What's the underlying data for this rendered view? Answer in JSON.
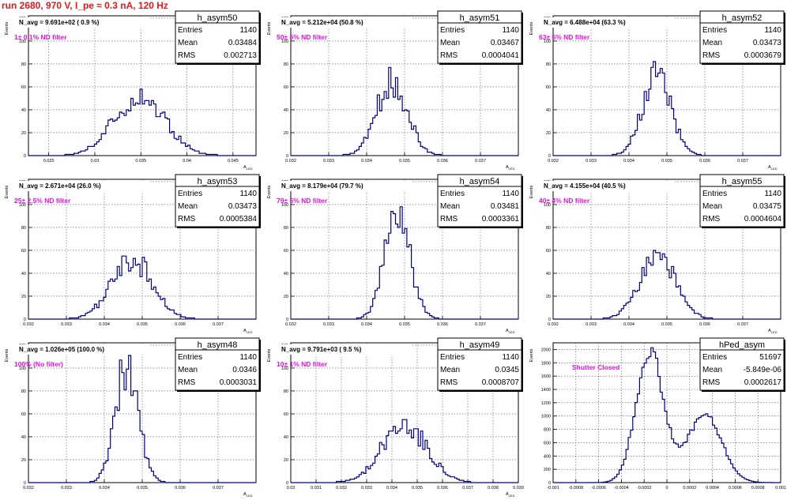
{
  "run_title": "run 2680,   970 V, I_pe ≈ 0.3 nA, 120 Hz",
  "colors": {
    "title": "#e0191c",
    "histogram": "#000080",
    "filter_label": "#e610e6"
  },
  "chart_data": [
    {
      "type": "histogram",
      "name": "h_asym50",
      "n_avg": "N_avg = 9.691e+02 ( 0.9 %)",
      "filter": "1± 0.1% ND filter",
      "stats": {
        "entries": "1140",
        "mean": "0.03484",
        "rms": "0.002713"
      },
      "ylabel": "Events",
      "xlabel": "A_LED",
      "xlim": [
        0.0228,
        0.0475
      ],
      "ylim": [
        0,
        122
      ],
      "xticks": [
        "0.025",
        "0.03",
        "0.035",
        "0.04",
        "0.045"
      ],
      "yticks": [
        "0",
        "20",
        "40",
        "60",
        "80",
        "100",
        "120"
      ],
      "mean_val": 0.03484,
      "rms_val": 0.002713,
      "peak": 52,
      "grid": true
    },
    {
      "type": "histogram",
      "name": "h_asym51",
      "n_avg": "N_avg = 5.212e+04 (50.8 %)",
      "filter": "50± 5% ND filter",
      "stats": {
        "entries": "1140",
        "mean": "0.03467",
        "rms": "0.0004041"
      },
      "ylabel": "Events",
      "xlabel": "A_LED",
      "xlim": [
        0.032,
        0.038
      ],
      "ylim": [
        0,
        122
      ],
      "xticks": [
        "0.032",
        "0.033",
        "0.034",
        "0.035",
        "0.036",
        "0.037"
      ],
      "yticks": [
        "0",
        "20",
        "40",
        "60",
        "80",
        "100",
        "120"
      ],
      "mean_val": 0.03467,
      "rms_val": 0.0004041,
      "peak": 65,
      "grid": true
    },
    {
      "type": "histogram",
      "name": "h_asym52",
      "n_avg": "N_avg = 6.488e+04 (63.3 %)",
      "filter": "63± 5% ND filter",
      "stats": {
        "entries": "1140",
        "mean": "0.03473",
        "rms": "0.0003679"
      },
      "ylabel": "Events",
      "xlabel": "A_LED",
      "xlim": [
        0.032,
        0.038
      ],
      "ylim": [
        0,
        122
      ],
      "xticks": [
        "0.032",
        "0.033",
        "0.034",
        "0.035",
        "0.036",
        "0.037"
      ],
      "yticks": [
        "0",
        "20",
        "40",
        "60",
        "80",
        "100",
        "120"
      ],
      "mean_val": 0.03473,
      "rms_val": 0.0003679,
      "peak": 72,
      "grid": true
    },
    {
      "type": "histogram",
      "name": "h_asym53",
      "n_avg": "N_avg = 2.671e+04 (26.0 %)",
      "filter": "25± 2.5% ND filter",
      "stats": {
        "entries": "1140",
        "mean": "0.03473",
        "rms": "0.0005384"
      },
      "ylabel": "Events",
      "xlabel": "A_LED",
      "xlim": [
        0.032,
        0.038
      ],
      "ylim": [
        0,
        122
      ],
      "xticks": [
        "0.032",
        "0.033",
        "0.034",
        "0.035",
        "0.036",
        "0.037"
      ],
      "yticks": [
        "0",
        "20",
        "40",
        "60",
        "80",
        "100",
        "120"
      ],
      "mean_val": 0.03473,
      "rms_val": 0.0005384,
      "peak": 52,
      "grid": true
    },
    {
      "type": "histogram",
      "name": "h_asym54",
      "n_avg": "N_avg = 8.179e+04 (79.7 %)",
      "filter": "79± 5% ND filter",
      "stats": {
        "entries": "1140",
        "mean": "0.03481",
        "rms": "0.0003361"
      },
      "ylabel": "Events",
      "xlabel": "A_LED",
      "xlim": [
        0.032,
        0.038
      ],
      "ylim": [
        0,
        122
      ],
      "xticks": [
        "0.032",
        "0.033",
        "0.034",
        "0.035",
        "0.036",
        "0.037"
      ],
      "yticks": [
        "0",
        "20",
        "40",
        "60",
        "80",
        "100",
        "120"
      ],
      "mean_val": 0.03481,
      "rms_val": 0.0003361,
      "peak": 90,
      "grid": true
    },
    {
      "type": "histogram",
      "name": "h_asym55",
      "n_avg": "N_avg = 4.155e+04 (40.5 %)",
      "filter": "40± 4% ND filter",
      "stats": {
        "entries": "1140",
        "mean": "0.03475",
        "rms": "0.0004604"
      },
      "ylabel": "Events",
      "xlabel": "A_LED",
      "xlim": [
        0.032,
        0.038
      ],
      "ylim": [
        0,
        122
      ],
      "xticks": [
        "0.032",
        "0.033",
        "0.034",
        "0.035",
        "0.036",
        "0.037"
      ],
      "yticks": [
        "0",
        "20",
        "40",
        "60",
        "80",
        "100",
        "120"
      ],
      "mean_val": 0.03475,
      "rms_val": 0.0004604,
      "peak": 57,
      "grid": true
    },
    {
      "type": "histogram",
      "name": "h_asym48",
      "n_avg": "N_avg = 1.026e+05 (100.0 %)",
      "filter": "100% (No filter)",
      "stats": {
        "entries": "1140",
        "mean": "0.0346",
        "rms": "0.0003031"
      },
      "ylabel": "Events",
      "xlabel": "A_LED",
      "xlim": [
        0.032,
        0.038
      ],
      "ylim": [
        0,
        122
      ],
      "xticks": [
        "0.032",
        "0.033",
        "0.034",
        "0.035",
        "0.036",
        "0.037"
      ],
      "yticks": [
        "0",
        "20",
        "40",
        "60",
        "80",
        "100",
        "120"
      ],
      "mean_val": 0.0346,
      "rms_val": 0.0003031,
      "peak": 103,
      "grid": true
    },
    {
      "type": "histogram",
      "name": "h_asym49",
      "n_avg": "N_avg = 9.791e+03 ( 9.5 %)",
      "filter": "10± 1% ND filter",
      "stats": {
        "entries": "1140",
        "mean": "0.0345",
        "rms": "0.0008707"
      },
      "ylabel": "Events",
      "xlabel": "A_LED",
      "xlim": [
        0.03,
        0.039
      ],
      "ylim": [
        0,
        122
      ],
      "xticks": [
        "0.03",
        "0.031",
        "0.032",
        "0.033",
        "0.034",
        "0.035",
        "0.036",
        "0.037",
        "0.038",
        "0.039"
      ],
      "yticks": [
        "0",
        "20",
        "40",
        "60",
        "80",
        "100",
        "120"
      ],
      "mean_val": 0.0345,
      "rms_val": 0.0008707,
      "peak": 52,
      "grid": true
    },
    {
      "type": "histogram",
      "name": "hPed_asym",
      "n_avg": "",
      "filter": "Shutter Closed",
      "stats": {
        "entries": "51697",
        "mean": "-5.849e-06",
        "rms": "0.0002617"
      },
      "ylabel": "Events",
      "xlabel": "",
      "xlim": [
        -0.001,
        0.001
      ],
      "ylim": [
        0,
        2100
      ],
      "xticks": [
        "-0.001",
        "-0.0008",
        "-0.0006",
        "-0.0004",
        "-0.0002",
        "0",
        "0.0002",
        "0.0004",
        "0.0006",
        "0.0008",
        "0.001"
      ],
      "yticks": [
        "0",
        "200",
        "400",
        "600",
        "800",
        "1000",
        "1200",
        "1400",
        "1600",
        "1800",
        "2000"
      ],
      "bimodal": {
        "mu1": -0.00015,
        "s1": 0.00012,
        "a1": 1980,
        "mu2": 0.00033,
        "s2": 0.00015,
        "a2": 1020
      },
      "peak": 1980,
      "grid": true
    }
  ]
}
